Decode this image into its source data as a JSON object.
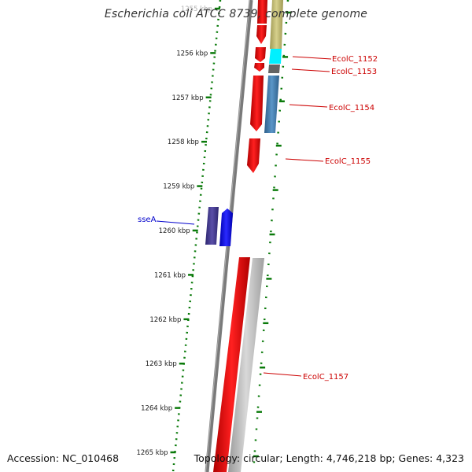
{
  "title": "Escherichia coli ATCC 8739, complete genome",
  "footer": {
    "accession": "Accession: NC_010468",
    "summary": "Topology: circular; Length: 4,746,218 bp; Genes: 4,323"
  },
  "colors": {
    "ticks": "#0a7a0a",
    "backbone": "#808080",
    "forward_gene": "#ff0000",
    "reverse_gene": "#ff0000",
    "label_red": "#cc0000",
    "label_blue": "#0000cc",
    "olive": "#bdb676",
    "cyan": "#00ffff",
    "dark_gray": "#646464",
    "steel_blue": "#4682b4",
    "slate_blue": "#483d8b",
    "blue": "#0000ff",
    "light_gray": "#bebebe"
  },
  "axis": {
    "unit": "kbp",
    "ticks": [
      {
        "label": "1255 kbp",
        "faded": true
      },
      {
        "label": "1256 kbp"
      },
      {
        "label": "1257 kbp"
      },
      {
        "label": "1258 kbp"
      },
      {
        "label": "1259 kbp"
      },
      {
        "label": "1260 kbp"
      },
      {
        "label": "1261 kbp"
      },
      {
        "label": "1262 kbp"
      },
      {
        "label": "1263 kbp"
      },
      {
        "label": "1264 kbp"
      },
      {
        "label": "1265 kbp"
      }
    ]
  },
  "gene_labels": [
    {
      "text": "EcolC_1152",
      "color": "red"
    },
    {
      "text": "EcolC_1153",
      "color": "red"
    },
    {
      "text": "EcolC_1154",
      "color": "red"
    },
    {
      "text": "EcolC_1155",
      "color": "red"
    },
    {
      "text": "EcolC_1157",
      "color": "red"
    },
    {
      "text": "sseA",
      "color": "blue"
    }
  ]
}
